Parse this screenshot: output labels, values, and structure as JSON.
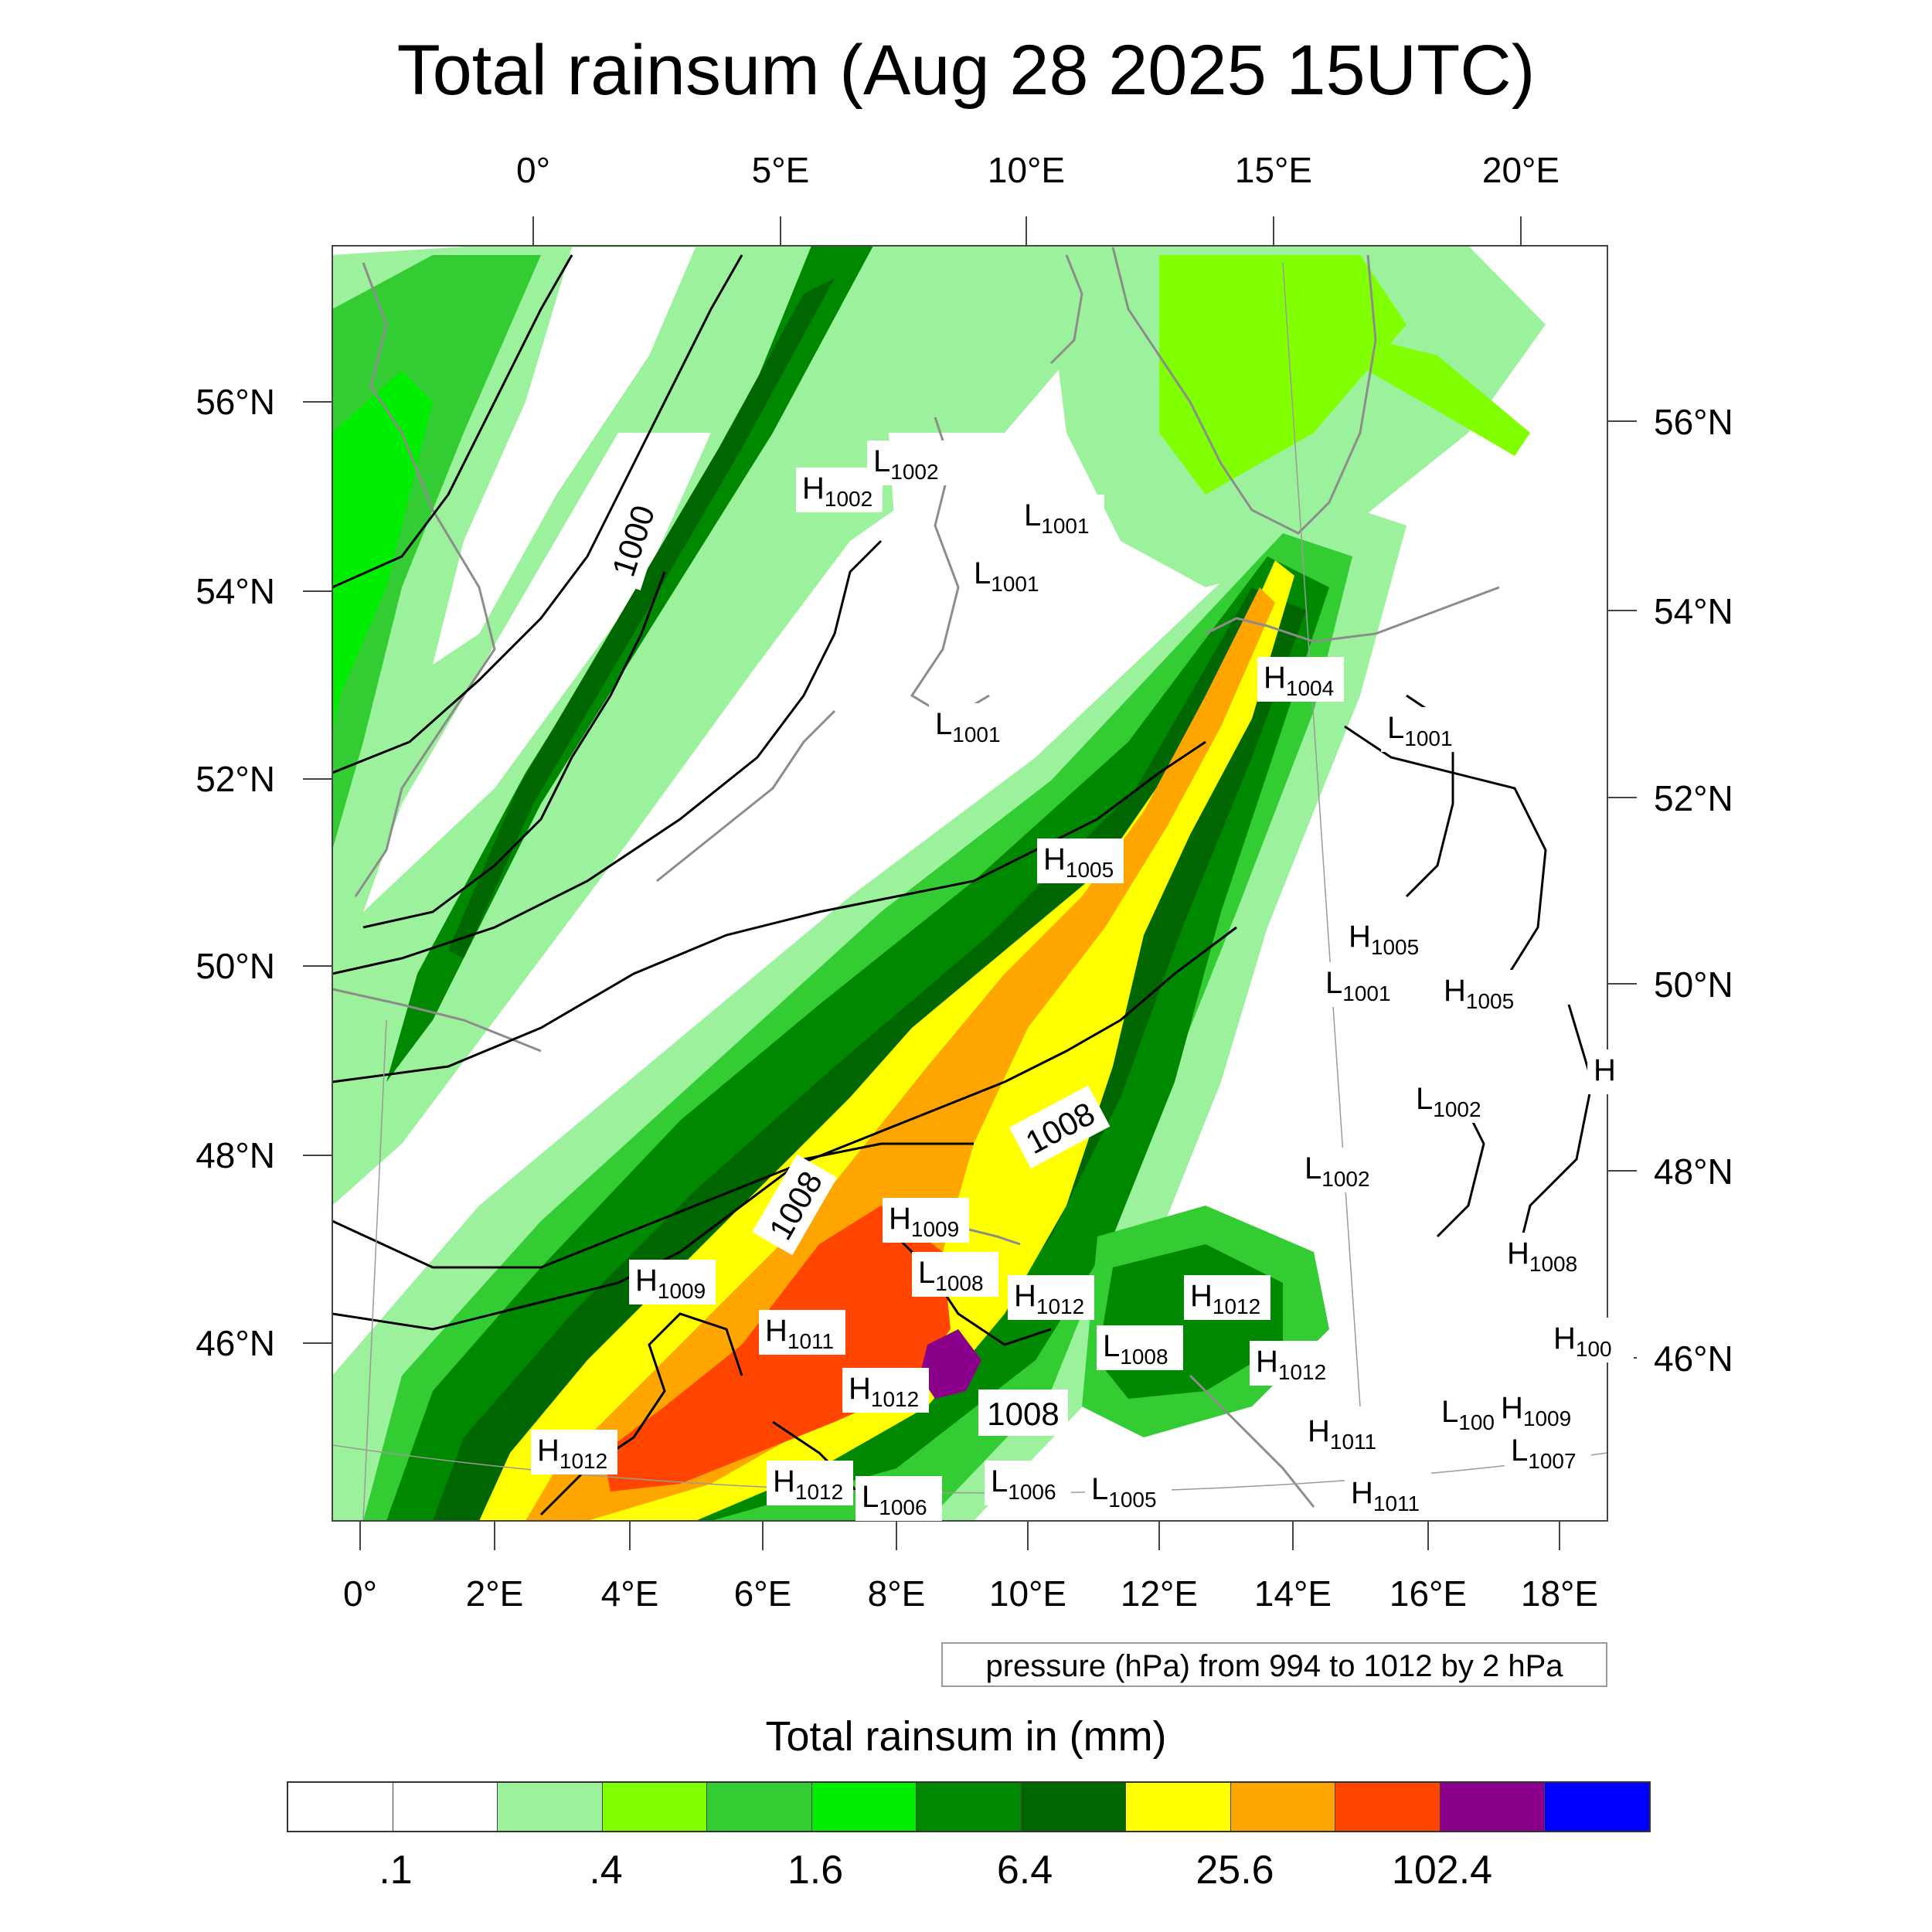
{
  "title": "Total rainsum (Aug 28 2025 15UTC)",
  "axes": {
    "top_lon_labels": [
      "0°",
      "5°E",
      "10°E",
      "15°E",
      "20°E"
    ],
    "bottom_lon_labels": [
      "0°",
      "2°E",
      "4°E",
      "6°E",
      "8°E",
      "10°E",
      "12°E",
      "14°E",
      "16°E",
      "18°E"
    ],
    "left_lat_labels": [
      "56°N",
      "54°N",
      "52°N",
      "50°N",
      "48°N",
      "46°N"
    ],
    "right_lat_labels": [
      "56°N",
      "54°N",
      "52°N",
      "50°N",
      "48°N",
      "46°N"
    ]
  },
  "pressure_note": "pressure (hPa) from 994 to 1012 by 2 hPa",
  "contour_labels": [
    "1000",
    "1008",
    "1008",
    "1008"
  ],
  "pressure_centers": [
    {
      "kind": "H",
      "value": "1002"
    },
    {
      "kind": "L",
      "value": "1002"
    },
    {
      "kind": "L",
      "value": "1001"
    },
    {
      "kind": "L",
      "value": "1001"
    },
    {
      "kind": "L",
      "value": "1001"
    },
    {
      "kind": "H",
      "value": "1004"
    },
    {
      "kind": "L",
      "value": "1001"
    },
    {
      "kind": "H",
      "value": "1005"
    },
    {
      "kind": "H",
      "value": "1005"
    },
    {
      "kind": "L",
      "value": "1001"
    },
    {
      "kind": "H",
      "value": "1005"
    },
    {
      "kind": "L",
      "value": "1002"
    },
    {
      "kind": "L",
      "value": "1002"
    },
    {
      "kind": "H",
      "value": "1009"
    },
    {
      "kind": "H",
      "value": "1009"
    },
    {
      "kind": "L",
      "value": "1008"
    },
    {
      "kind": "H",
      "value": "1012"
    },
    {
      "kind": "H",
      "value": "1012"
    },
    {
      "kind": "H",
      "value": "1011"
    },
    {
      "kind": "L",
      "value": "1008"
    },
    {
      "kind": "H",
      "value": "1012"
    },
    {
      "kind": "H",
      "value": "1012"
    },
    {
      "kind": "H",
      "value": "1008"
    },
    {
      "kind": "H",
      "value": "100"
    },
    {
      "kind": "H",
      "value": "1012"
    },
    {
      "kind": "H",
      "value": "1011"
    },
    {
      "kind": "L",
      "value": "100"
    },
    {
      "kind": "H",
      "value": "1009"
    },
    {
      "kind": "L",
      "value": "1007"
    },
    {
      "kind": "H",
      "value": "1012"
    },
    {
      "kind": "L",
      "value": "1006"
    },
    {
      "kind": "L",
      "value": "1006"
    },
    {
      "kind": "L",
      "value": "1005"
    },
    {
      "kind": "H",
      "value": "1011"
    },
    {
      "kind": "H",
      "value": ""
    }
  ],
  "colorbar": {
    "title": "Total rainsum in (mm)",
    "colors": [
      "#ffffff",
      "#ffffff",
      "#9cf19c",
      "#80ff00",
      "#33cc33",
      "#00ee00",
      "#008800",
      "#006600",
      "#ffff00",
      "#ffa500",
      "#ff4500",
      "#8b008b",
      "#0000ff"
    ],
    "labels": [
      ".1",
      ".4",
      "1.6",
      "6.4",
      "25.6",
      "102.4"
    ]
  },
  "colors": {
    "land_outline": "#8c8c8c",
    "isobar": "#000000",
    "frame": "#444444"
  }
}
